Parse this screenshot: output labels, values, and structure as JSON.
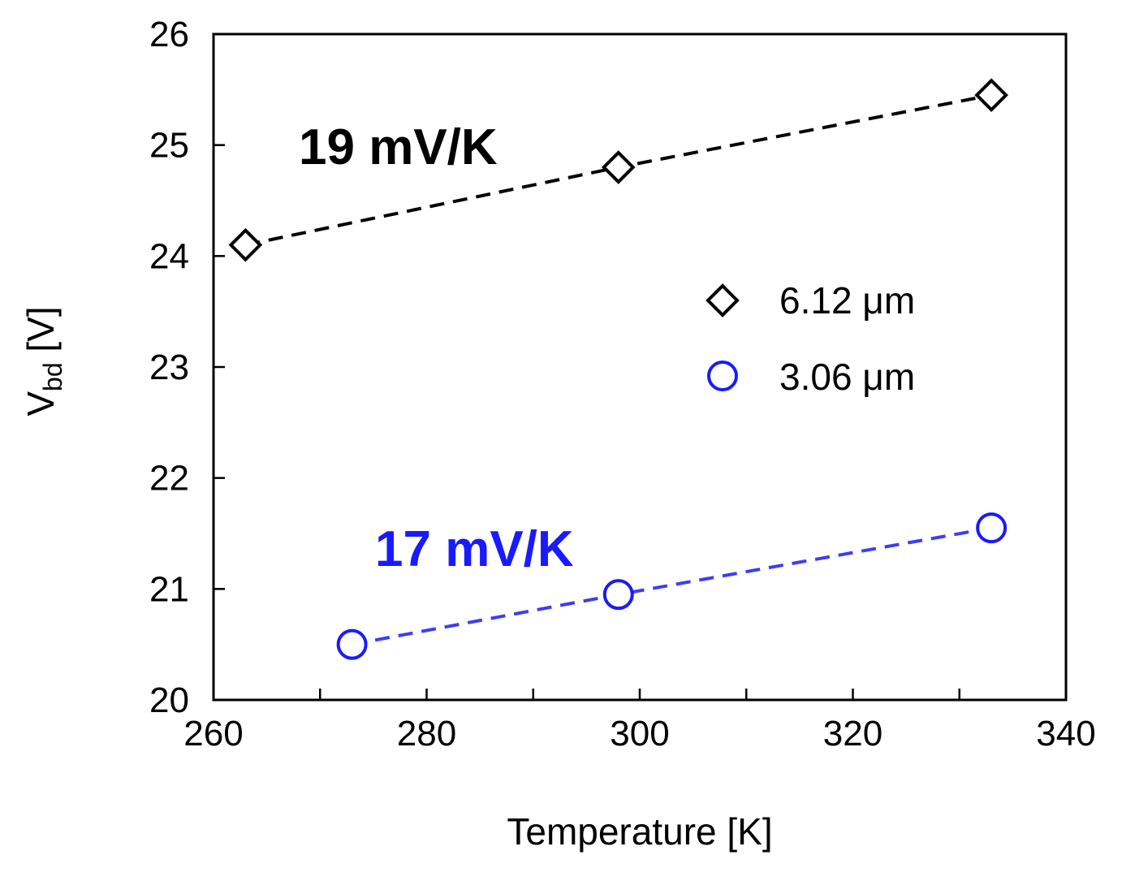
{
  "chart_data": {
    "type": "scatter",
    "title": "",
    "xlabel": "Temperature [K]",
    "ylabel_main": "V",
    "ylabel_sub": "bd",
    "ylabel_unit": " [V]",
    "xlim": [
      260,
      340
    ],
    "ylim": [
      20,
      26
    ],
    "xticks": [
      260,
      280,
      300,
      320,
      340
    ],
    "yticks": [
      20,
      21,
      22,
      23,
      24,
      25,
      26
    ],
    "legend_position": "right-middle",
    "series": [
      {
        "name": "6.12 μm",
        "marker": "diamond",
        "color": "#000000",
        "x": [
          263,
          298,
          333
        ],
        "y": [
          24.1,
          24.8,
          25.45
        ],
        "annotation": "19 mV/K",
        "annotation_color": "#000000"
      },
      {
        "name": "3.06 μm",
        "marker": "circle",
        "color": "#1a1aff",
        "line_color": "#3d3df5",
        "x": [
          273,
          298,
          333
        ],
        "y": [
          20.5,
          20.95,
          21.55
        ],
        "annotation": "17 mV/K",
        "annotation_color": "#1a1aff"
      }
    ]
  }
}
